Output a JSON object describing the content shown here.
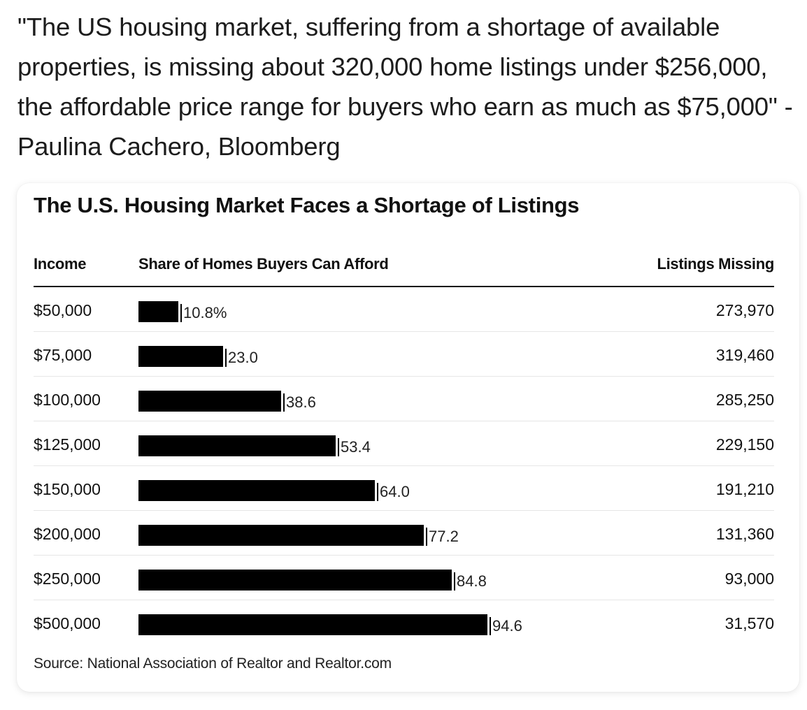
{
  "post": {
    "quote": "\"The US housing market, suffering from a shortage of available properties, is missing about 320,000 home listings under $256,000, the affordable price range for buyers who earn as much as $75,000\" - Paulina Cachero, Bloomberg"
  },
  "colors": {
    "bar": "#000000",
    "text": "#111111",
    "card_background": "#ffffff"
  },
  "chart_data": {
    "type": "table",
    "title": "The U.S. Housing Market Faces a Shortage of Listings",
    "columns": {
      "income": "Income",
      "share": "Share of Homes Buyers Can Afford",
      "missing": "Listings Missing"
    },
    "xlim": [
      0,
      100
    ],
    "rows": [
      {
        "income": "$50,000",
        "share": 10.8,
        "share_label": "10.8%",
        "missing": "273,970"
      },
      {
        "income": "$75,000",
        "share": 23.0,
        "share_label": "23.0",
        "missing": "319,460"
      },
      {
        "income": "$100,000",
        "share": 38.6,
        "share_label": "38.6",
        "missing": "285,250"
      },
      {
        "income": "$125,000",
        "share": 53.4,
        "share_label": "53.4",
        "missing": "229,150"
      },
      {
        "income": "$150,000",
        "share": 64.0,
        "share_label": "64.0",
        "missing": "191,210"
      },
      {
        "income": "$200,000",
        "share": 77.2,
        "share_label": "77.2",
        "missing": "131,360"
      },
      {
        "income": "$250,000",
        "share": 84.8,
        "share_label": "84.8",
        "missing": "93,000"
      },
      {
        "income": "$500,000",
        "share": 94.6,
        "share_label": "94.6",
        "missing": "31,570"
      }
    ],
    "source": "Source: National Association of Realtor and Realtor.com"
  }
}
